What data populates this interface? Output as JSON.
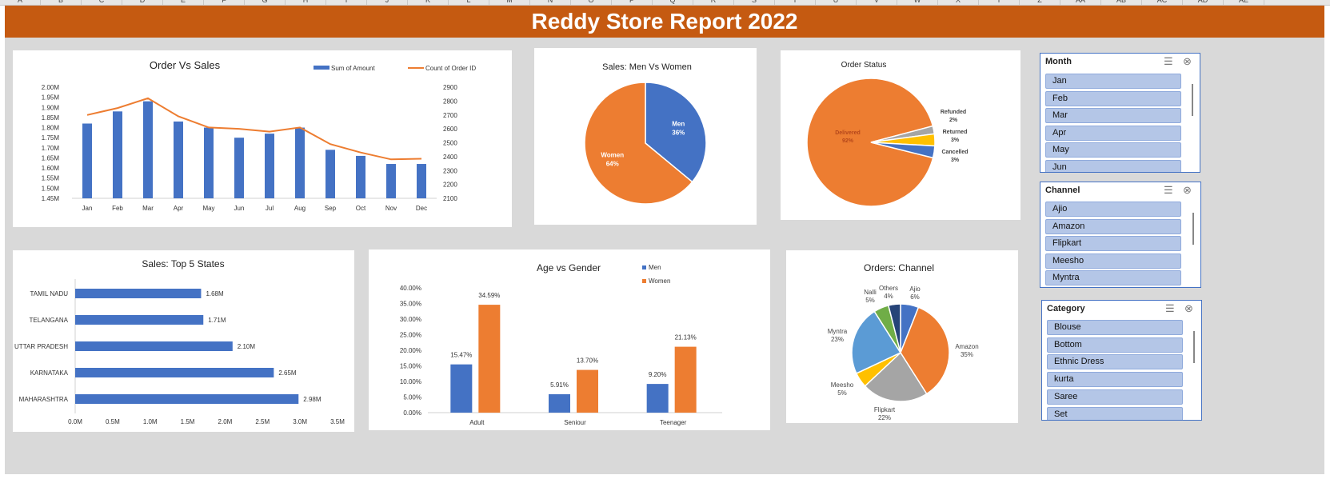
{
  "column_headers": [
    "A",
    "B",
    "C",
    "D",
    "E",
    "F",
    "G",
    "H",
    "I",
    "J",
    "K",
    "L",
    "M",
    "N",
    "O",
    "P",
    "Q",
    "R",
    "S",
    "T",
    "U",
    "V",
    "W",
    "X",
    "Y",
    "Z",
    "AA",
    "AB",
    "AC",
    "AD",
    "AE"
  ],
  "title": "Reddy Store Report 2022",
  "colors": {
    "blue": "#4472c4",
    "orange": "#ed7d31",
    "gray": "#a5a5a5",
    "yellow": "#ffc000",
    "light_blue": "#5b9bd5",
    "green": "#70ad47",
    "navy": "#264478",
    "banner": "#c55a11"
  },
  "charts": {
    "order_sales": {
      "type": "bar+line",
      "title": "Order Vs Sales",
      "legend": [
        "Sum of Amount",
        "Count of Order ID"
      ],
      "legend_position": "top-right",
      "categories": [
        "Jan",
        "Feb",
        "Mar",
        "Apr",
        "May",
        "Jun",
        "Jul",
        "Aug",
        "Sep",
        "Oct",
        "Nov",
        "Dec"
      ],
      "bar_values": [
        1.82,
        1.88,
        1.93,
        1.83,
        1.8,
        1.75,
        1.77,
        1.8,
        1.69,
        1.66,
        1.62,
        1.62
      ],
      "line_values": [
        2700,
        2750,
        2820,
        2690,
        2610,
        2600,
        2580,
        2610,
        2490,
        2430,
        2380,
        2385
      ],
      "y_left_ticks": [
        "1.45M",
        "1.50M",
        "1.55M",
        "1.60M",
        "1.65M",
        "1.70M",
        "1.75M",
        "1.80M",
        "1.85M",
        "1.90M",
        "1.95M",
        "2.00M"
      ],
      "y_left_range": [
        1.45,
        2.0
      ],
      "y_right_ticks": [
        "2100",
        "2200",
        "2300",
        "2400",
        "2500",
        "2600",
        "2700",
        "2800",
        "2900"
      ],
      "y_right_range": [
        2100,
        2900
      ]
    },
    "gender": {
      "type": "pie",
      "title": "Sales: Men Vs Women",
      "slices": [
        {
          "label": "Men",
          "pct": "36%",
          "value": 36
        },
        {
          "label": "Women",
          "pct": "64%",
          "value": 64
        }
      ]
    },
    "status": {
      "type": "pie",
      "title": "Order Status",
      "slices": [
        {
          "label": "Delivered",
          "pct": "92%",
          "value": 92
        },
        {
          "label": "Refunded",
          "pct": "2%",
          "value": 2
        },
        {
          "label": "Returned",
          "pct": "3%",
          "value": 3
        },
        {
          "label": "Cancelled",
          "pct": "3%",
          "value": 3
        }
      ]
    },
    "states": {
      "type": "bar",
      "title": "Sales: Top 5 States",
      "categories": [
        "TAMIL NADU",
        "TELANGANA",
        "UTTAR PRADESH",
        "KARNATAKA",
        "MAHARASHTRA"
      ],
      "values": [
        1.68,
        1.71,
        2.1,
        2.65,
        2.98
      ],
      "labels": [
        "1.68M",
        "1.71M",
        "2.10M",
        "2.65M",
        "2.98M"
      ],
      "x_ticks": [
        "0.0M",
        "0.5M",
        "1.0M",
        "1.5M",
        "2.0M",
        "2.5M",
        "3.0M",
        "3.5M"
      ],
      "x_range": [
        0,
        3.5
      ]
    },
    "age": {
      "type": "bar",
      "title": "Age vs Gender",
      "legend": [
        "Men",
        "Women"
      ],
      "categories": [
        "Adult",
        "Seniour",
        "Teenager"
      ],
      "series": [
        {
          "name": "Men",
          "values": [
            15.47,
            5.91,
            9.2
          ],
          "labels": [
            "15.47%",
            "5.91%",
            "9.20%"
          ]
        },
        {
          "name": "Women",
          "values": [
            34.59,
            13.7,
            21.13
          ],
          "labels": [
            "34.59%",
            "13.70%",
            "21.13%"
          ]
        }
      ],
      "y_ticks": [
        "0.00%",
        "5.00%",
        "10.00%",
        "15.00%",
        "20.00%",
        "25.00%",
        "30.00%",
        "35.00%",
        "40.00%"
      ],
      "y_range": [
        0,
        40
      ]
    },
    "channel": {
      "type": "pie",
      "title": "Orders: Channel",
      "slices": [
        {
          "label": "Ajio",
          "pct": "6%",
          "value": 6
        },
        {
          "label": "Amazon",
          "pct": "35%",
          "value": 35
        },
        {
          "label": "Flipkart",
          "pct": "22%",
          "value": 22
        },
        {
          "label": "Meesho",
          "pct": "5%",
          "value": 5
        },
        {
          "label": "Myntra",
          "pct": "23%",
          "value": 23
        },
        {
          "label": "Nalli",
          "pct": "5%",
          "value": 5
        },
        {
          "label": "Others",
          "pct": "4%",
          "value": 4
        }
      ]
    }
  },
  "slicers": [
    {
      "title": "Month",
      "items": [
        "Jan",
        "Feb",
        "Mar",
        "Apr",
        "May",
        "Jun"
      ]
    },
    {
      "title": "Channel",
      "items": [
        "Ajio",
        "Amazon",
        "Flipkart",
        "Meesho",
        "Myntra"
      ]
    },
    {
      "title": "Category",
      "items": [
        "Blouse",
        "Bottom",
        "Ethnic Dress",
        "kurta",
        "Saree",
        "Set"
      ]
    }
  ]
}
